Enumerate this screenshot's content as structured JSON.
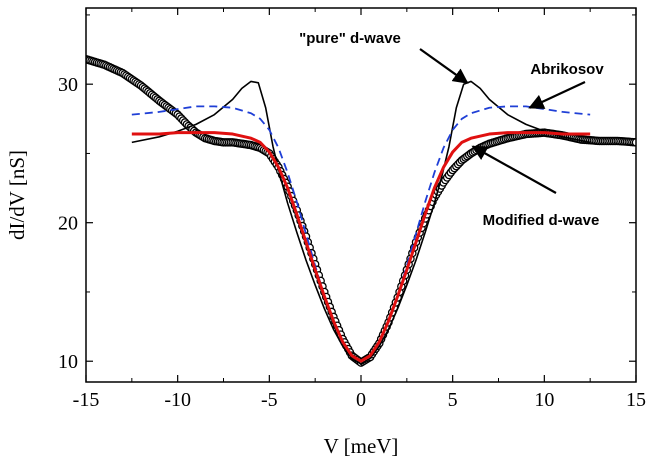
{
  "chart_data": {
    "type": "line",
    "title": "",
    "xlabel": "V [meV]",
    "ylabel": "dI/dV [nS]",
    "xlim": [
      -15,
      15
    ],
    "ylim": [
      8.5,
      35.5
    ],
    "x_ticks": [
      -15,
      -10,
      -5,
      0,
      5,
      10,
      15
    ],
    "x_tick_labels": [
      "-15",
      "-10",
      "-5",
      "0",
      "5",
      "10",
      "15"
    ],
    "y_ticks": [
      10,
      20,
      30
    ],
    "y_tick_labels": [
      "10",
      "20",
      "30"
    ],
    "grid": false,
    "legend": "none",
    "annotations": [
      {
        "text": "\"pure\" d-wave",
        "target_series": "pure d-wave",
        "target": [
          5.8,
          30.1
        ]
      },
      {
        "text": "Abrikosov",
        "target_series": "Abrikosov",
        "target": [
          9.2,
          28.3
        ]
      },
      {
        "text": "Modified d-wave",
        "target_series": "measured",
        "target": [
          6.1,
          25.5
        ]
      }
    ],
    "series": [
      {
        "key": "measured",
        "style": "open-circles",
        "color": "#000000",
        "x": [
          -15,
          -14,
          -13,
          -12,
          -11,
          -10,
          -9.5,
          -9,
          -8.5,
          -8,
          -7.5,
          -7,
          -6.5,
          -6,
          -5.5,
          -5,
          -4.5,
          -4,
          -3.5,
          -3,
          -2.5,
          -2,
          -1.5,
          -1,
          -0.5,
          0,
          0.5,
          1,
          1.5,
          2,
          2.5,
          3,
          3.5,
          4,
          4.5,
          5,
          5.5,
          6,
          6.5,
          7,
          8,
          9,
          10,
          11,
          12,
          13,
          14,
          15
        ],
        "y": [
          31.8,
          31.4,
          30.8,
          29.9,
          28.8,
          27.8,
          27.1,
          26.5,
          26.1,
          25.9,
          25.8,
          25.8,
          25.7,
          25.6,
          25.4,
          25.0,
          24.0,
          22.6,
          20.9,
          19.0,
          17.0,
          15.0,
          13.2,
          11.6,
          10.4,
          9.9,
          10.3,
          11.3,
          12.8,
          14.6,
          16.6,
          18.6,
          20.3,
          21.8,
          22.9,
          23.8,
          24.5,
          25.0,
          25.4,
          25.7,
          26.1,
          26.4,
          26.5,
          26.3,
          26.0,
          25.9,
          25.9,
          25.8
        ]
      },
      {
        "key": "pure d-wave",
        "style": "solid",
        "color": "#000000",
        "x": [
          -12.5,
          -11,
          -10,
          -9,
          -8,
          -7,
          -6.5,
          -6,
          -5.6,
          -5.2,
          -4.8,
          -4.4,
          -4,
          -3.5,
          -3,
          -2.5,
          -2,
          -1.5,
          -1,
          -0.5,
          0,
          0.5,
          1,
          1.5,
          2,
          2.5,
          3,
          3.5,
          4,
          4.4,
          4.8,
          5.2,
          5.6,
          6,
          6.5,
          7,
          8,
          9,
          10,
          11,
          12.5
        ],
        "y": [
          25.8,
          26.2,
          26.6,
          27.1,
          27.8,
          28.9,
          29.7,
          30.2,
          30.1,
          28.3,
          25.5,
          23.3,
          21.4,
          19.3,
          17.3,
          15.5,
          13.8,
          12.3,
          11.1,
          10.2,
          9.8,
          10.2,
          11.1,
          12.3,
          13.8,
          15.5,
          17.3,
          19.3,
          21.4,
          23.3,
          25.5,
          28.3,
          30.0,
          30.2,
          29.7,
          28.9,
          27.8,
          27.1,
          26.6,
          26.2,
          25.8
        ]
      },
      {
        "key": "Abrikosov",
        "style": "dashed",
        "color": "#1f3fd6",
        "x": [
          -12.5,
          -11,
          -10,
          -9,
          -8,
          -7,
          -6,
          -5.5,
          -5,
          -4.5,
          -4,
          -3.5,
          -3,
          -2.5,
          -2,
          -1.5,
          -1,
          -0.5,
          0,
          0.5,
          1,
          1.5,
          2,
          2.5,
          3,
          3.5,
          4,
          4.5,
          5,
          5.5,
          6,
          7,
          8,
          9,
          10,
          11,
          12.5
        ],
        "y": [
          27.8,
          28.0,
          28.2,
          28.4,
          28.4,
          28.3,
          27.9,
          27.5,
          26.7,
          25.4,
          23.6,
          21.5,
          19.2,
          16.9,
          14.7,
          12.8,
          11.3,
          10.4,
          10.0,
          10.4,
          11.3,
          12.8,
          14.7,
          16.9,
          19.2,
          21.5,
          23.6,
          25.4,
          26.7,
          27.5,
          27.9,
          28.3,
          28.4,
          28.4,
          28.2,
          28.0,
          27.8
        ]
      },
      {
        "key": "modified d-wave",
        "style": "solid-thick",
        "color": "#e01010",
        "x": [
          -12.5,
          -11,
          -10,
          -9,
          -8,
          -7,
          -6,
          -5.5,
          -5,
          -4.5,
          -4,
          -3.5,
          -3,
          -2.5,
          -2,
          -1.5,
          -1,
          -0.5,
          0,
          0.5,
          1,
          1.5,
          2,
          2.5,
          3,
          3.5,
          4,
          4.5,
          5,
          5.5,
          6,
          7,
          8,
          9,
          10,
          11,
          12.5
        ],
        "y": [
          26.4,
          26.4,
          26.5,
          26.5,
          26.5,
          26.4,
          26.1,
          25.8,
          25.1,
          24.0,
          22.5,
          20.6,
          18.6,
          16.6,
          14.7,
          12.9,
          11.4,
          10.4,
          10.0,
          10.4,
          11.4,
          12.9,
          14.7,
          16.6,
          18.6,
          20.6,
          22.5,
          24.0,
          25.1,
          25.8,
          26.1,
          26.4,
          26.5,
          26.5,
          26.5,
          26.4,
          26.4
        ]
      }
    ]
  }
}
